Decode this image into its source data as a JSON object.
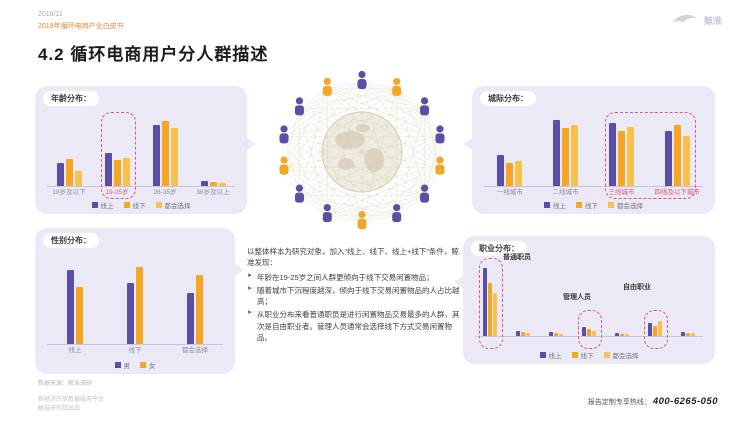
{
  "header": {
    "date": "2019/11",
    "report_title": "2019年循环电商产业白皮书",
    "logo_text": "鲸准",
    "page_title": "4.2 循环电商用户分人群描述"
  },
  "insight": {
    "intro": "以整体样本为研究对象，加入“线上、线下、线上+线下”条件，鲸准发现：",
    "bullets": [
      "年龄在19-25岁之间人群更倾向于线下交易闲置物品；",
      "随着城市下沉程度越深，倾向于线下交易闲置物品的人占比越高；",
      "从职业分布来看普通职员是进行闲置物品交易最多的人群，其次是自由职业者。管理人员通常会选择线下方式交易闲置物品。"
    ]
  },
  "footer": {
    "source_note": "数据来源：鲸准调研",
    "tagline_line1": "新经济开放数据服务平台",
    "tagline_line2": "鲸准研究院出品",
    "hotline_label": "报告定制专享热线：",
    "hotline_number": "400-6265-050"
  },
  "colors": {
    "purple": "#5b4ea5",
    "orange": "#f5a623",
    "yellow": "#f9c04a",
    "panel_bg": "#ece9f7",
    "highlight": "#e0557d"
  },
  "chart_data": [
    {
      "id": "age",
      "type": "bar",
      "title": "年龄分布：",
      "categories": [
        "18岁及以下",
        "19-25岁",
        "26-35岁",
        "36岁及以上"
      ],
      "series": [
        {
          "name": "线上",
          "color": "#5b4ea5",
          "values": [
            22,
            32,
            58,
            6
          ]
        },
        {
          "name": "线下",
          "color": "#f5a623",
          "values": [
            26,
            25,
            62,
            5
          ]
        },
        {
          "name": "都会选择",
          "color": "#f9c04a",
          "values": [
            15,
            27,
            55,
            4
          ]
        }
      ],
      "ylim": [
        0,
        70
      ],
      "grid": false,
      "legend_position": "bottom",
      "highlight_ranges": [
        {
          "from": 1,
          "to": 1,
          "top_pct": 0
        }
      ],
      "highlight_label_categories": [
        1
      ]
    },
    {
      "id": "city-tier",
      "type": "bar",
      "title": "城际分布：",
      "categories": [
        "一线城市",
        "二线城市",
        "三线城市",
        "四线及以下城市"
      ],
      "series": [
        {
          "name": "线上",
          "color": "#5b4ea5",
          "values": [
            30,
            63,
            60,
            52
          ]
        },
        {
          "name": "线下",
          "color": "#f5a623",
          "values": [
            22,
            55,
            52,
            58
          ]
        },
        {
          "name": "都会选择",
          "color": "#f9c04a",
          "values": [
            24,
            58,
            56,
            48
          ]
        }
      ],
      "ylim": [
        0,
        70
      ],
      "grid": false,
      "legend_position": "bottom",
      "highlight_ranges": [
        {
          "from": 2,
          "to": 3,
          "top_pct": 0
        }
      ],
      "highlight_label_categories": [
        2,
        3
      ]
    },
    {
      "id": "gender",
      "type": "bar",
      "title": "性别分布：",
      "categories": [
        "线上",
        "线下",
        "都会选择"
      ],
      "series": [
        {
          "name": "男",
          "color": "#5b4ea5",
          "values": [
            58,
            48,
            40
          ]
        },
        {
          "name": "女",
          "color": "#f5a623",
          "values": [
            45,
            60,
            54
          ]
        }
      ],
      "ylim": [
        0,
        70
      ],
      "grid": false,
      "legend_position": "bottom",
      "highlight_ranges": [],
      "highlight_label_categories": []
    },
    {
      "id": "occupation",
      "type": "bar",
      "title": "职业分布：",
      "categories": [
        "普通职员",
        "",
        "",
        "管理人员",
        "",
        "自由职业",
        ""
      ],
      "show_category_labels": false,
      "callout_labels": [
        "普通职员",
        "管理人员",
        "自由职业"
      ],
      "series": [
        {
          "name": "线上",
          "color": "#5b4ea5",
          "values": [
            70,
            6,
            5,
            10,
            4,
            14,
            5
          ]
        },
        {
          "name": "线下",
          "color": "#f5a623",
          "values": [
            55,
            5,
            4,
            8,
            3,
            11,
            4
          ]
        },
        {
          "name": "都会选择",
          "color": "#f9c04a",
          "values": [
            45,
            4,
            3,
            6,
            3,
            16,
            4
          ]
        }
      ],
      "ylim": [
        0,
        80
      ],
      "grid": false,
      "legend_position": "bottom",
      "highlight_ranges": [
        {
          "from": 0,
          "to": 0,
          "top_pct": 0
        },
        {
          "from": 3,
          "to": 3,
          "top_pct": 58
        },
        {
          "from": 5,
          "to": 5,
          "top_pct": 58
        }
      ],
      "highlight_label_categories": []
    }
  ]
}
